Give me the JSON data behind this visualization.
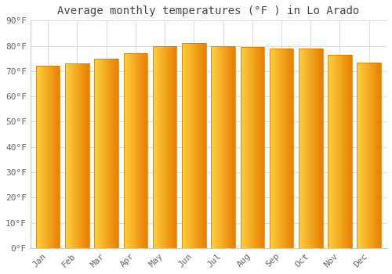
{
  "title": "Average monthly temperatures (°F ) in Lo Arado",
  "months": [
    "Jan",
    "Feb",
    "Mar",
    "Apr",
    "May",
    "Jun",
    "Jul",
    "Aug",
    "Sep",
    "Oct",
    "Nov",
    "Dec"
  ],
  "values": [
    72,
    73,
    75,
    77,
    80,
    81,
    80,
    79.5,
    79,
    79,
    76.5,
    73.5
  ],
  "ylim": [
    0,
    90
  ],
  "yticks": [
    0,
    10,
    20,
    30,
    40,
    50,
    60,
    70,
    80,
    90
  ],
  "ytick_labels": [
    "0°F",
    "10°F",
    "20°F",
    "30°F",
    "40°F",
    "50°F",
    "60°F",
    "70°F",
    "80°F",
    "90°F"
  ],
  "bar_color_left": "#FFD040",
  "bar_color_right": "#E88000",
  "background_color": "#FFFFFF",
  "plot_bg_color": "#FFFFFF",
  "grid_color": "#DDDDDD",
  "title_fontsize": 10,
  "tick_fontsize": 8,
  "title_color": "#444444",
  "tick_color": "#666666",
  "bar_width": 0.82
}
